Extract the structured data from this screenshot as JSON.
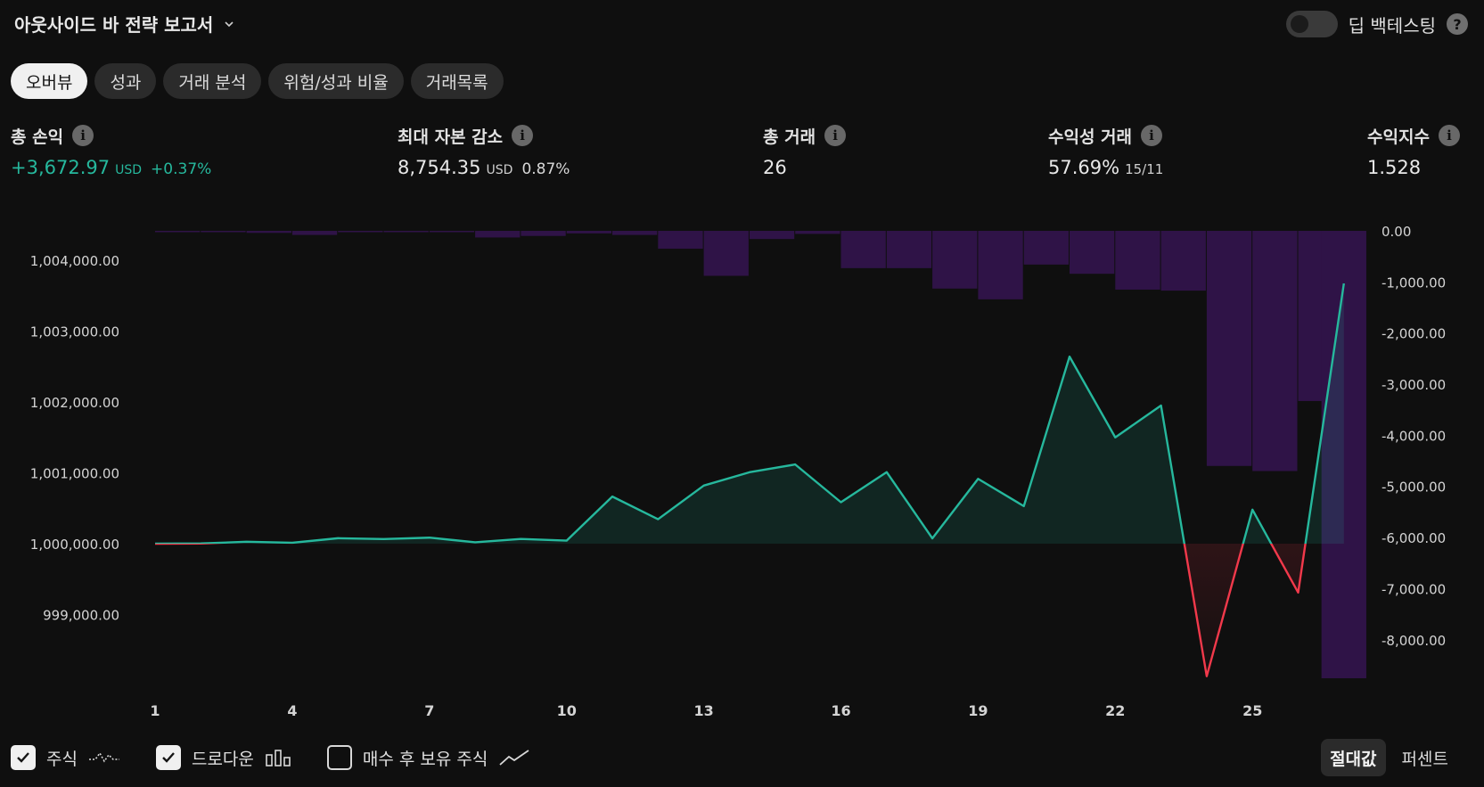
{
  "header": {
    "title": "아웃사이드 바 전략 보고서",
    "deep_backtest_label": "딥 백테스팅",
    "help_icon_text": "?"
  },
  "tabs": [
    "오버뷰",
    "성과",
    "거래 분석",
    "위험/성과 비율",
    "거래목록"
  ],
  "stats": {
    "net_profit": {
      "label": "총 손익",
      "value": "+3,672.97",
      "unit": "USD",
      "pct": "+0.37%"
    },
    "max_drawdown": {
      "label": "최대 자본 감소",
      "value": "8,754.35",
      "unit": "USD",
      "pct": "0.87%"
    },
    "total_trades": {
      "label": "총 거래",
      "value": "26"
    },
    "profitable": {
      "label": "수익성 거래",
      "value": "57.69%",
      "sub": "15/11"
    },
    "profit_factor": {
      "label": "수익지수",
      "value": "1.528"
    },
    "info_icon_text": "i"
  },
  "legend": {
    "equity": "주식",
    "drawdown": "드로다운",
    "buy_hold": "매수 후 보유 주식"
  },
  "segment": {
    "absolute": "절대값",
    "percent": "퍼센트"
  },
  "colors": {
    "equity_line": "#26b89d",
    "loss_line": "#f2394b",
    "drawdown_bar": "#2f1347",
    "background": "#0f0f0f"
  },
  "chart_data": {
    "type": "line",
    "x": [
      1,
      2,
      3,
      4,
      5,
      6,
      7,
      8,
      9,
      10,
      11,
      12,
      13,
      14,
      15,
      16,
      17,
      18,
      19,
      20,
      21,
      22,
      23,
      24,
      25,
      26,
      27
    ],
    "x_ticks": [
      "1",
      "4",
      "7",
      "10",
      "13",
      "16",
      "19",
      "22",
      "25"
    ],
    "series": [
      {
        "axis": "left",
        "values": [
          1000000,
          1000003,
          1000027,
          1000013,
          1000077,
          1000065,
          1000085,
          1000020,
          1000067,
          1000043,
          1000665,
          1000345,
          1000820,
          1001008,
          1001118,
          1000585,
          1001010,
          1000075,
          1000915,
          1000530,
          1002640,
          1001500,
          1001950,
          998130,
          1000480,
          999310,
          1003673
        ]
      },
      {
        "axis": "right",
        "type": "bar",
        "values": [
          -20,
          -20,
          -40,
          -80,
          -20,
          -20,
          -20,
          -130,
          -100,
          -50,
          -80,
          -350,
          -880,
          -160,
          -60,
          -730,
          -730,
          -1130,
          -1340,
          -660,
          -840,
          -1150,
          -1170,
          -4600,
          -4700,
          -3330,
          -8754
        ]
      }
    ],
    "left_ticks": [
      "1,004,000.00",
      "1,003,000.00",
      "1,002,000.00",
      "1,001,000.00",
      "1,000,000.00",
      "999,000.00"
    ],
    "left_range": [
      998000,
      1004400
    ],
    "right_ticks": [
      "0.00",
      "-1,000.00",
      "-2,000.00",
      "-3,000.00",
      "-4,000.00",
      "-5,000.00",
      "-6,000.00",
      "-7,000.00",
      "-8,000.00"
    ],
    "right_range": [
      -8754,
      0
    ],
    "grid": false
  }
}
